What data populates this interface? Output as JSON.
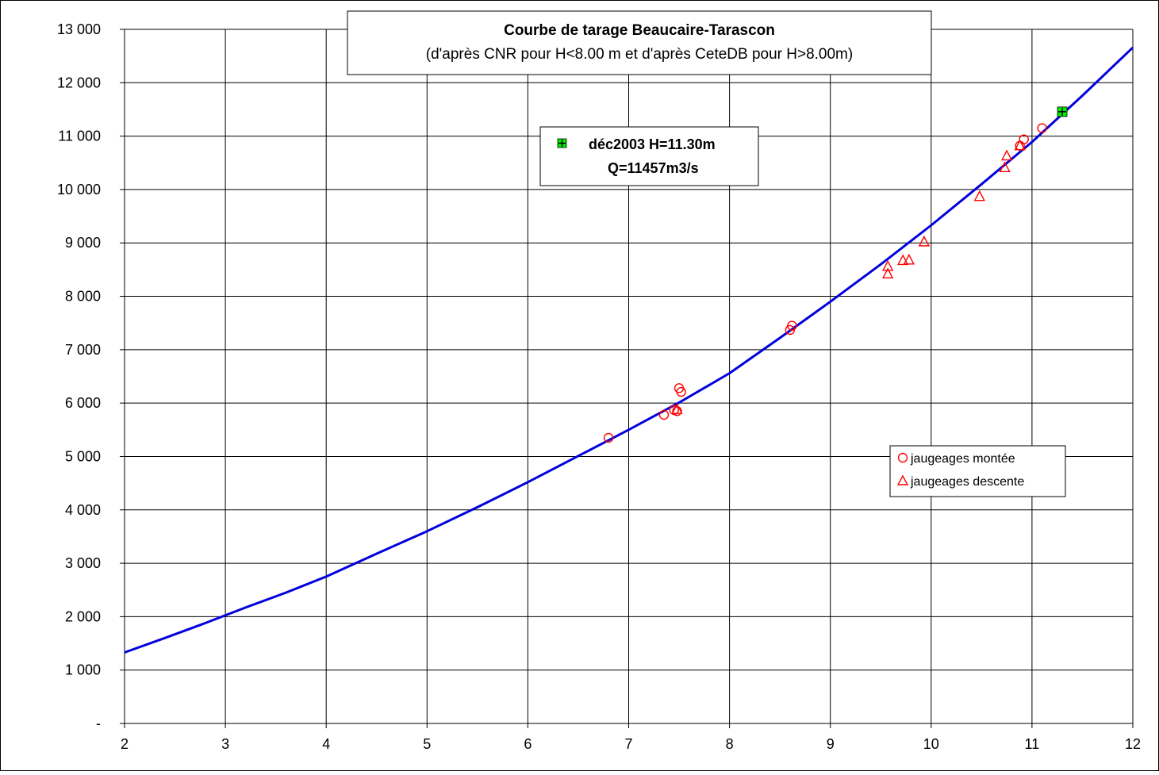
{
  "chart_data": {
    "type": "line",
    "title": "Courbe de tarage Beaucaire-Tarascon",
    "subtitle": "(d'après CNR pour H<8.00 m et d'après CeteDB pour H>8.00m)",
    "xlim": [
      2,
      12
    ],
    "ylim": [
      0,
      13000
    ],
    "x_ticks": [
      2,
      3,
      4,
      5,
      6,
      7,
      8,
      9,
      10,
      11,
      12
    ],
    "y_ticks": [
      0,
      1000,
      2000,
      3000,
      4000,
      5000,
      6000,
      7000,
      8000,
      9000,
      10000,
      11000,
      12000,
      13000
    ],
    "y_tick_labels": [
      "-",
      "1 000",
      "2 000",
      "3 000",
      "4 000",
      "5 000",
      "6 000",
      "7 000",
      "8 000",
      "9 000",
      "10 000",
      "11 000",
      "12 000",
      "13 000"
    ],
    "grid": true,
    "colors": {
      "curve": "#0000dd",
      "gaugings": "#ff0000",
      "highlight_fill": "#00ee00"
    },
    "series": [
      {
        "marker": "line",
        "x": [
          2,
          2.4,
          2.8,
          3.2,
          3.6,
          4,
          4.5,
          5,
          5.5,
          6,
          6.5,
          7,
          7.5,
          8,
          8.5,
          9,
          9.5,
          10,
          10.5,
          11,
          11.5,
          12
        ],
        "y": [
          1330,
          1600,
          1880,
          2170,
          2450,
          2750,
          3180,
          3600,
          4050,
          4520,
          5010,
          5500,
          6010,
          6560,
          7220,
          7900,
          8600,
          9330,
          10100,
          10890,
          11760,
          12660
        ]
      },
      {
        "name": "jaugeages montée",
        "marker": "circle",
        "x": [
          6.8,
          7.35,
          7.45,
          7.5,
          7.52,
          7.48,
          8.6,
          8.62,
          10.88,
          10.92,
          11.1
        ],
        "y": [
          5350,
          5780,
          5870,
          6280,
          6210,
          5850,
          7370,
          7450,
          10820,
          10940,
          11150
        ]
      },
      {
        "name": "jaugeages descente",
        "marker": "triangle",
        "x": [
          7.48,
          9.57,
          9.57,
          9.72,
          9.78,
          9.93,
          10.48,
          10.73,
          10.75,
          10.88
        ],
        "y": [
          5880,
          8420,
          8560,
          8670,
          8680,
          9020,
          9870,
          10410,
          10630,
          10820
        ]
      }
    ],
    "annotation": {
      "marker": "cross-square",
      "x": 11.3,
      "y": 11457,
      "line1": "déc2003 H=11.30m",
      "line2": "Q=11457m3/s"
    },
    "legend": {
      "placement": "right",
      "entries": [
        "jaugeages montée",
        "jaugeages descente"
      ]
    }
  }
}
